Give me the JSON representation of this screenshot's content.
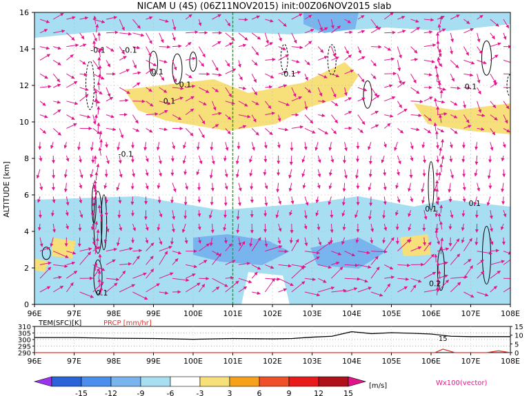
{
  "title": "NICAM U (4S) (06Z11NOV2015) init:00Z06NOV2015 slab",
  "colors": {
    "vector": "#e0158a",
    "dashed_line": "#22aa22",
    "tem_line": "#000000",
    "prcp_line": "#e0302a",
    "neg_fill_light": "#a7def2",
    "neg_fill_mid": "#78b4ee",
    "pos_fill": "#f7df7a"
  },
  "chart_data": [
    {
      "type": "contour-vector",
      "xlabel": "",
      "ylabel": "ALTITUDE [km]",
      "xlim": [
        96,
        108
      ],
      "ylim": [
        0,
        16
      ],
      "x_ticks": [
        "96E",
        "97E",
        "98E",
        "99E",
        "100E",
        "101E",
        "102E",
        "103E",
        "104E",
        "105E",
        "106E",
        "107E",
        "108E"
      ],
      "y_ticks": [
        "0",
        "2",
        "4",
        "6",
        "8",
        "10",
        "12",
        "14",
        "16"
      ],
      "marker_line_x": 101,
      "contour_labels": [
        {
          "text": "-0.1",
          "x": 97.6,
          "y": 13.8
        },
        {
          "text": "-0.1",
          "x": 98.4,
          "y": 13.8
        },
        {
          "text": "0.1",
          "x": 99.1,
          "y": 12.6
        },
        {
          "text": "0.1",
          "x": 99.8,
          "y": 11.9
        },
        {
          "text": "0.1",
          "x": 99.4,
          "y": 11.0
        },
        {
          "text": "-0.1",
          "x": 102.4,
          "y": 12.5
        },
        {
          "text": "0.1",
          "x": 107.0,
          "y": 11.8
        },
        {
          "text": "-0.1",
          "x": 98.3,
          "y": 8.1
        },
        {
          "text": "0.1",
          "x": 106.0,
          "y": 5.1
        },
        {
          "text": "0.1",
          "x": 107.1,
          "y": 5.4
        },
        {
          "text": "0.2",
          "x": 106.1,
          "y": 1.0
        },
        {
          "text": "0.1",
          "x": 97.7,
          "y": 0.5
        }
      ]
    },
    {
      "type": "line",
      "xlim": [
        96,
        108
      ],
      "series": [
        {
          "name": "TEM(SFC)[K]",
          "x": [
            96,
            97,
            98,
            99,
            100,
            101,
            102,
            102.5,
            103,
            103.5,
            104,
            104.5,
            105,
            105.5,
            106,
            106.5,
            107,
            108
          ],
          "values": [
            301.5,
            301.5,
            301.0,
            300.8,
            300.2,
            300.8,
            300.5,
            300.8,
            301.8,
            302.5,
            306.0,
            304.5,
            305.2,
            304.8,
            304.2,
            302.5,
            302.2,
            302.2
          ]
        },
        {
          "name": "PRCP [mm/hr]",
          "x": [
            96,
            97,
            97.4,
            97.7,
            98,
            99,
            100,
            101,
            102,
            103,
            104,
            105,
            105.9,
            106.1,
            106.3,
            106.6,
            107,
            107.4,
            107.7,
            108
          ],
          "values": [
            0,
            0,
            0,
            0,
            0,
            0,
            0,
            0,
            0,
            0,
            0,
            0,
            0,
            0,
            2,
            0,
            0,
            0,
            1,
            0
          ]
        }
      ],
      "y_left_ticks": [
        "310",
        "305",
        "300",
        "295",
        "290"
      ],
      "y_right_ticks": [
        "15",
        "10",
        "5",
        "0"
      ],
      "x_ticks": [
        "96E",
        "97E",
        "98E",
        "99E",
        "100E",
        "101E",
        "102E",
        "103E",
        "104E",
        "105E",
        "106E",
        "107E",
        "108E"
      ],
      "mid_label": "15"
    },
    {
      "type": "colorbar",
      "tick_labels": [
        "-15",
        "-12",
        "-9",
        "-6",
        "-3",
        "3",
        "6",
        "9",
        "12",
        "15"
      ],
      "unit": "[m/s]",
      "colors": [
        "#9b32ee",
        "#2a64d8",
        "#4b8eee",
        "#78b4ee",
        "#a7def2",
        "#ffffff",
        "#f7df7a",
        "#f5a11c",
        "#f05028",
        "#e81a1a",
        "#b0101a",
        "#e0158a"
      ],
      "vector_label": "Wx100(vector)"
    }
  ]
}
